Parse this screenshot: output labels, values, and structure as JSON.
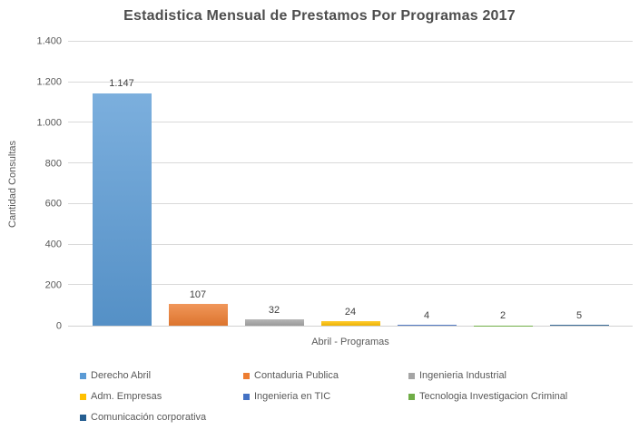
{
  "title": "Estadistica Mensual de Prestamos Por Programas 2017",
  "chart_data": {
    "type": "bar",
    "title": "Estadistica Mensual de Prestamos Por Programas 2017",
    "xlabel": "Abril - Programas",
    "ylabel": "Cantidad Consultas",
    "categories": [
      "Abril"
    ],
    "ylim": [
      0,
      1400
    ],
    "grid": true,
    "legend_position": "bottom",
    "yticks": [
      {
        "value": 0,
        "label": "0"
      },
      {
        "value": 200,
        "label": "200"
      },
      {
        "value": 400,
        "label": "400"
      },
      {
        "value": 600,
        "label": "600"
      },
      {
        "value": 800,
        "label": "800"
      },
      {
        "value": 1000,
        "label": "1.000"
      },
      {
        "value": 1200,
        "label": "1.200"
      },
      {
        "value": 1400,
        "label": "1.400"
      }
    ],
    "series": [
      {
        "name": "Derecho Abril",
        "value": 1147,
        "label": "1.147",
        "color": "#5B9BD5"
      },
      {
        "name": "Contaduria Publica",
        "value": 107,
        "label": "107",
        "color": "#ED7D31"
      },
      {
        "name": "Ingenieria Industrial",
        "value": 32,
        "label": "32",
        "color": "#A5A5A5"
      },
      {
        "name": "Adm. Empresas",
        "value": 24,
        "label": "24",
        "color": "#FFC000"
      },
      {
        "name": "Ingenieria en TIC",
        "value": 4,
        "label": "4",
        "color": "#4472C4"
      },
      {
        "name": "Tecnologia Investigacion Criminal",
        "value": 2,
        "label": "2",
        "color": "#70AD47"
      },
      {
        "name": "Comunicación corporativa",
        "value": 5,
        "label": "5",
        "color": "#255E91"
      }
    ]
  }
}
